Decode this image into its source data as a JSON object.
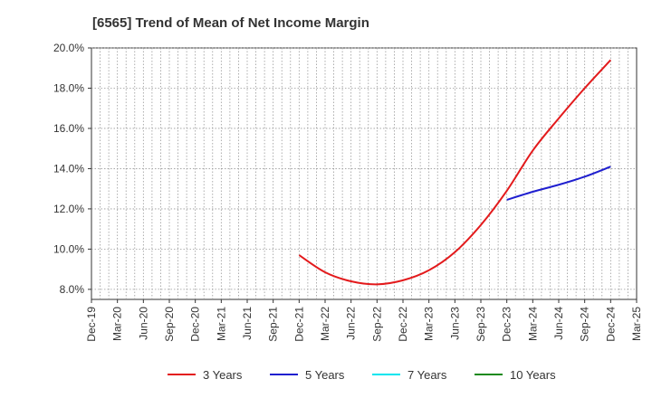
{
  "chart_data": {
    "type": "line",
    "title": "[6565]  Trend of Mean of Net Income Margin",
    "xlabel": "",
    "ylabel": "",
    "x_ticks": [
      "Dec-19",
      "Mar-20",
      "Jun-20",
      "Sep-20",
      "Dec-20",
      "Mar-21",
      "Jun-21",
      "Sep-21",
      "Dec-21",
      "Mar-22",
      "Jun-22",
      "Sep-22",
      "Dec-22",
      "Mar-23",
      "Jun-23",
      "Sep-23",
      "Dec-23",
      "Mar-24",
      "Jun-24",
      "Sep-24",
      "Dec-24",
      "Mar-25"
    ],
    "y_ticks": [
      "8.0%",
      "10.0%",
      "12.0%",
      "14.0%",
      "16.0%",
      "18.0%",
      "20.0%"
    ],
    "ylim": [
      7.5,
      20.0
    ],
    "grid": true,
    "legend_position": "bottom",
    "series": [
      {
        "name": "3 Years",
        "color": "#e31a1c",
        "x": [
          "Dec-21",
          "Mar-22",
          "Jun-22",
          "Sep-22",
          "Dec-22",
          "Mar-23",
          "Jun-23",
          "Sep-23",
          "Dec-23",
          "Mar-24",
          "Jun-24",
          "Sep-24",
          "Dec-24"
        ],
        "values": [
          9.7,
          8.85,
          8.4,
          8.25,
          8.45,
          8.95,
          9.85,
          11.2,
          12.9,
          14.9,
          16.5,
          18.0,
          19.4
        ]
      },
      {
        "name": "5 Years",
        "color": "#1f1fcf",
        "x": [
          "Dec-23",
          "Mar-24",
          "Jun-24",
          "Sep-24",
          "Dec-24"
        ],
        "values": [
          12.45,
          12.85,
          13.2,
          13.6,
          14.1
        ]
      },
      {
        "name": "7 Years",
        "color": "#00e5ee",
        "x": [],
        "values": []
      },
      {
        "name": "10 Years",
        "color": "#1a8a1a",
        "x": [],
        "values": []
      }
    ]
  }
}
